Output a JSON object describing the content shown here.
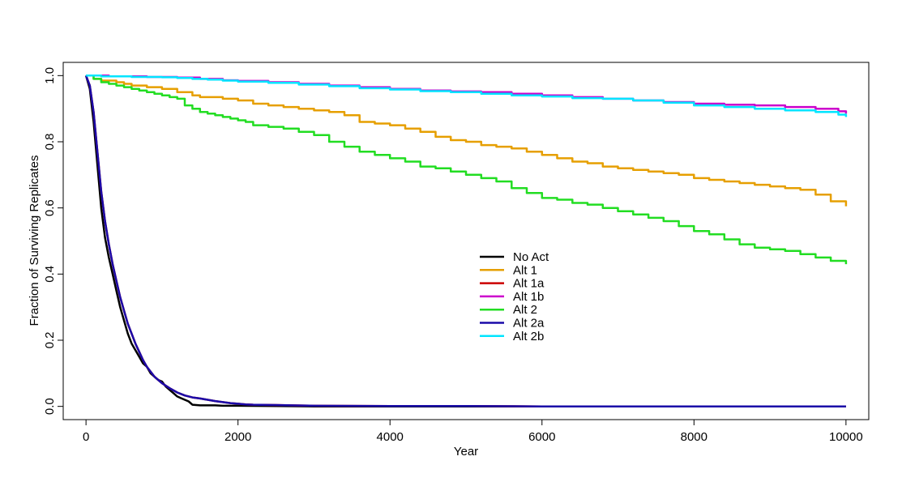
{
  "chart_data": {
    "type": "line",
    "title": "",
    "xlabel": "Year",
    "ylabel": "Fraction of Surviving Replicates",
    "xlim": [
      -300,
      10300
    ],
    "ylim": [
      -0.04,
      1.04
    ],
    "xticks": [
      "0",
      "2000",
      "4000",
      "6000",
      "8000",
      "10000"
    ],
    "yticks": [
      "0.0",
      "0.2",
      "0.4",
      "0.6",
      "0.8",
      "1.0"
    ],
    "grid": false,
    "legend_position": "center",
    "series": [
      {
        "name": "No Act",
        "color": "#000000",
        "step": false,
        "x": [
          0,
          50,
          100,
          150,
          200,
          250,
          300,
          350,
          400,
          450,
          500,
          550,
          600,
          650,
          700,
          750,
          800,
          850,
          900,
          950,
          1000,
          1050,
          1100,
          1150,
          1200,
          1250,
          1300,
          1350,
          1400,
          1450,
          1500,
          1600,
          1700,
          1800,
          1900,
          2000,
          2500,
          3000,
          4000,
          5000,
          6000,
          7000,
          8000,
          9000,
          10000
        ],
        "y": [
          1.0,
          0.96,
          0.86,
          0.73,
          0.6,
          0.51,
          0.45,
          0.4,
          0.35,
          0.3,
          0.26,
          0.22,
          0.19,
          0.17,
          0.15,
          0.13,
          0.12,
          0.1,
          0.09,
          0.08,
          0.075,
          0.06,
          0.05,
          0.04,
          0.03,
          0.025,
          0.02,
          0.015,
          0.005,
          0.004,
          0.003,
          0.003,
          0.003,
          0.002,
          0.002,
          0.002,
          0.001,
          0.0,
          0.0,
          0.0,
          0.0,
          0.0,
          0.0,
          0.0,
          0.0
        ]
      },
      {
        "name": "Alt 1",
        "color": "#E69F00",
        "step": true,
        "x": [
          0,
          100,
          200,
          400,
          500,
          600,
          800,
          1000,
          1200,
          1400,
          1500,
          1800,
          2000,
          2200,
          2400,
          2600,
          2800,
          3000,
          3200,
          3400,
          3600,
          3800,
          4000,
          4200,
          4400,
          4600,
          4800,
          5000,
          5200,
          5400,
          5600,
          5800,
          6000,
          6200,
          6400,
          6600,
          6800,
          7000,
          7200,
          7400,
          7600,
          7800,
          8000,
          8200,
          8400,
          8600,
          8800,
          9000,
          9200,
          9400,
          9600,
          9800,
          10000
        ],
        "y": [
          1.0,
          0.99,
          0.985,
          0.98,
          0.975,
          0.97,
          0.965,
          0.96,
          0.95,
          0.94,
          0.935,
          0.93,
          0.925,
          0.915,
          0.91,
          0.905,
          0.9,
          0.895,
          0.89,
          0.88,
          0.86,
          0.855,
          0.85,
          0.84,
          0.83,
          0.815,
          0.805,
          0.8,
          0.79,
          0.785,
          0.78,
          0.77,
          0.76,
          0.75,
          0.74,
          0.735,
          0.725,
          0.72,
          0.715,
          0.71,
          0.705,
          0.7,
          0.69,
          0.685,
          0.68,
          0.675,
          0.67,
          0.665,
          0.66,
          0.655,
          0.64,
          0.62,
          0.605
        ]
      },
      {
        "name": "Alt 1a",
        "color": "#CC0000",
        "step": false,
        "x": [
          0,
          50,
          100,
          150,
          200,
          250,
          300,
          350,
          400,
          450,
          500,
          550,
          600,
          650,
          700,
          750,
          800,
          850,
          900,
          950,
          1000,
          1100,
          1200,
          1300,
          1400,
          1500,
          1600,
          1700,
          1800,
          1900,
          2000,
          2100,
          2200,
          2500,
          2700,
          3000,
          4000,
          5000,
          6000,
          7000,
          8000,
          9000,
          10000
        ],
        "y": [
          1.0,
          0.97,
          0.89,
          0.77,
          0.65,
          0.56,
          0.49,
          0.43,
          0.38,
          0.33,
          0.29,
          0.25,
          0.22,
          0.19,
          0.165,
          0.14,
          0.12,
          0.105,
          0.09,
          0.08,
          0.07,
          0.055,
          0.042,
          0.033,
          0.027,
          0.024,
          0.02,
          0.016,
          0.013,
          0.01,
          0.008,
          0.006,
          0.005,
          0.004,
          0.003,
          0.002,
          0.001,
          0.001,
          0.0,
          0.0,
          0.0,
          0.0,
          0.0
        ]
      },
      {
        "name": "Alt 1b",
        "color": "#CC00CC",
        "step": true,
        "x": [
          0,
          300,
          800,
          1200,
          1500,
          1800,
          2000,
          2400,
          2800,
          3200,
          3600,
          4000,
          4400,
          4800,
          5200,
          5600,
          6000,
          6400,
          6800,
          7200,
          7600,
          8000,
          8400,
          8800,
          9200,
          9600,
          9900,
          10000
        ],
        "y": [
          1.0,
          0.998,
          0.996,
          0.994,
          0.99,
          0.986,
          0.984,
          0.98,
          0.975,
          0.97,
          0.965,
          0.96,
          0.955,
          0.952,
          0.95,
          0.945,
          0.94,
          0.935,
          0.93,
          0.925,
          0.92,
          0.915,
          0.912,
          0.91,
          0.905,
          0.9,
          0.892,
          0.885
        ]
      },
      {
        "name": "Alt 2",
        "color": "#22DD22",
        "step": true,
        "x": [
          0,
          100,
          200,
          300,
          400,
          500,
          600,
          700,
          800,
          900,
          1000,
          1100,
          1200,
          1300,
          1400,
          1500,
          1600,
          1700,
          1800,
          1900,
          2000,
          2100,
          2200,
          2400,
          2600,
          2800,
          3000,
          3200,
          3400,
          3600,
          3800,
          4000,
          4200,
          4400,
          4600,
          4800,
          5000,
          5200,
          5400,
          5600,
          5800,
          6000,
          6200,
          6400,
          6600,
          6800,
          7000,
          7200,
          7400,
          7600,
          7800,
          8000,
          8200,
          8400,
          8600,
          8800,
          9000,
          9200,
          9400,
          9600,
          9800,
          10000
        ],
        "y": [
          1.0,
          0.99,
          0.98,
          0.975,
          0.97,
          0.965,
          0.96,
          0.955,
          0.95,
          0.945,
          0.94,
          0.935,
          0.93,
          0.91,
          0.9,
          0.89,
          0.885,
          0.88,
          0.875,
          0.87,
          0.865,
          0.86,
          0.85,
          0.845,
          0.84,
          0.83,
          0.82,
          0.8,
          0.785,
          0.77,
          0.76,
          0.75,
          0.74,
          0.725,
          0.72,
          0.71,
          0.7,
          0.69,
          0.68,
          0.66,
          0.645,
          0.63,
          0.625,
          0.615,
          0.61,
          0.6,
          0.59,
          0.58,
          0.57,
          0.56,
          0.545,
          0.53,
          0.52,
          0.505,
          0.49,
          0.48,
          0.475,
          0.47,
          0.46,
          0.45,
          0.44,
          0.43
        ]
      },
      {
        "name": "Alt 2a",
        "color": "#1A0AA8",
        "step": false,
        "x": [
          0,
          50,
          100,
          150,
          200,
          250,
          300,
          350,
          400,
          450,
          500,
          550,
          600,
          650,
          700,
          750,
          800,
          850,
          900,
          950,
          1000,
          1100,
          1200,
          1300,
          1400,
          1500,
          1600,
          1700,
          1800,
          1900,
          2000,
          2100,
          2200,
          2500,
          2700,
          3000,
          4000,
          5000,
          6000,
          7000,
          8000,
          9000,
          10000
        ],
        "y": [
          1.0,
          0.97,
          0.89,
          0.77,
          0.65,
          0.56,
          0.49,
          0.43,
          0.38,
          0.33,
          0.29,
          0.25,
          0.22,
          0.19,
          0.165,
          0.14,
          0.12,
          0.105,
          0.09,
          0.08,
          0.07,
          0.055,
          0.042,
          0.033,
          0.027,
          0.024,
          0.02,
          0.016,
          0.013,
          0.01,
          0.008,
          0.006,
          0.005,
          0.004,
          0.003,
          0.002,
          0.001,
          0.001,
          0.0,
          0.0,
          0.0,
          0.0,
          0.0
        ]
      },
      {
        "name": "Alt 2b",
        "color": "#00E5FF",
        "step": true,
        "x": [
          0,
          200,
          600,
          1000,
          1200,
          1400,
          1600,
          1800,
          2000,
          2400,
          2800,
          3200,
          3600,
          4000,
          4400,
          4800,
          5200,
          5600,
          6000,
          6400,
          6800,
          7200,
          7600,
          8000,
          8400,
          8800,
          9200,
          9600,
          9900,
          10000
        ],
        "y": [
          1.0,
          0.998,
          0.996,
          0.995,
          0.993,
          0.99,
          0.988,
          0.985,
          0.982,
          0.978,
          0.973,
          0.968,
          0.962,
          0.958,
          0.953,
          0.95,
          0.945,
          0.94,
          0.937,
          0.932,
          0.93,
          0.925,
          0.918,
          0.91,
          0.905,
          0.9,
          0.895,
          0.89,
          0.882,
          0.875
        ]
      }
    ]
  }
}
